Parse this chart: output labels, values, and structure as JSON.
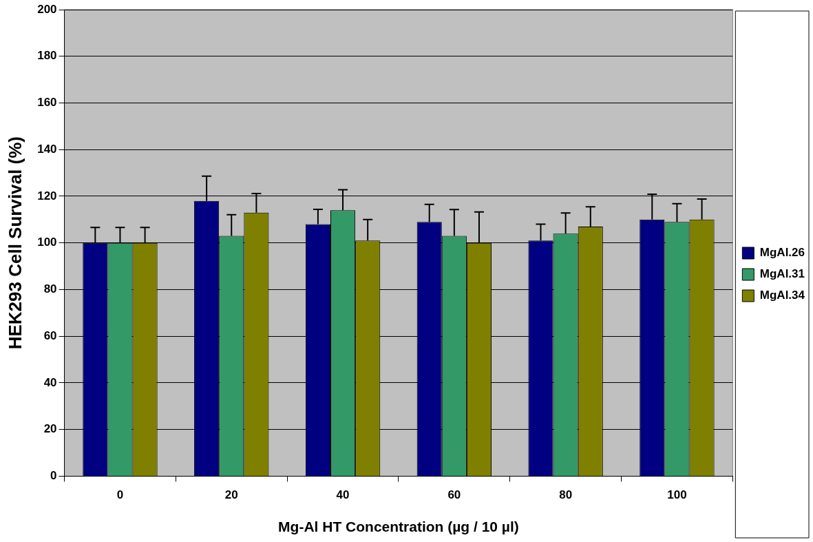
{
  "chart_data": {
    "type": "bar",
    "xlabel": "Mg-Al HT Concentration (µg / 10 µl)",
    "ylabel": "HEK293 Cell Survival (%)",
    "categories": [
      "0",
      "20",
      "40",
      "60",
      "80",
      "100"
    ],
    "series": [
      {
        "name": "MgAl.26",
        "color": "#000080",
        "values": [
          100,
          118,
          108,
          109,
          101,
          110
        ],
        "errors": [
          [
            100,
            106.6
          ],
          [
            118,
            128.6
          ],
          [
            108,
            114.4
          ],
          [
            109,
            116.5
          ],
          [
            101,
            108
          ],
          [
            110,
            120.9
          ]
        ]
      },
      {
        "name": "MgAl.31",
        "color": "#339966",
        "values": [
          100,
          103,
          114,
          103,
          104,
          109
        ],
        "errors": [
          [
            100,
            106.6
          ],
          [
            103,
            112.1
          ],
          [
            114,
            122.8
          ],
          [
            103,
            114.3
          ],
          [
            104,
            112.8
          ],
          [
            109,
            116.8
          ]
        ]
      },
      {
        "name": "MgAl.34",
        "color": "#808000",
        "values": [
          100,
          113,
          101,
          100,
          107,
          110
        ],
        "errors": [
          [
            100,
            106.6
          ],
          [
            113,
            121.2
          ],
          [
            101,
            110
          ],
          [
            100,
            113.3
          ],
          [
            107,
            115.5
          ],
          [
            110,
            118.8
          ]
        ]
      }
    ],
    "ylim": [
      0,
      200
    ],
    "yticks": [
      0,
      20,
      40,
      60,
      80,
      100,
      120,
      140,
      160,
      180,
      200
    ],
    "grid": "y",
    "legend": "right"
  }
}
